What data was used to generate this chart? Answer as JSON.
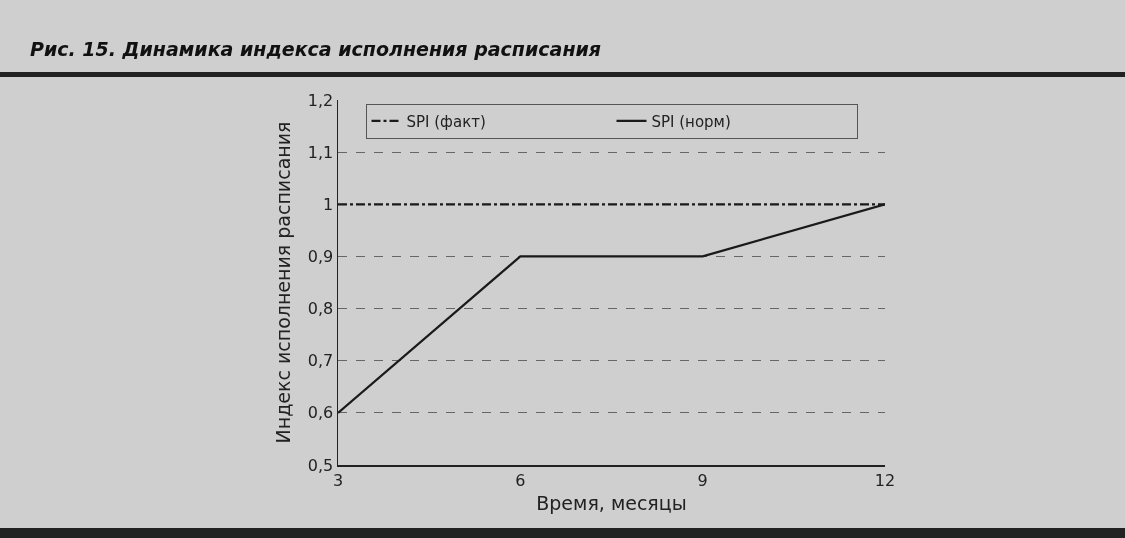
{
  "chart_data": {
    "type": "line",
    "title": "Рис. 15. Динамика индекса исполнения расписания",
    "xlabel": "Время, месяцы",
    "ylabel": "Индекс исполнения расписания",
    "x": [
      3,
      6,
      9,
      12
    ],
    "series": [
      {
        "name": "SPI (факт)",
        "color": "#1a1a1a",
        "values": [
          1,
          1,
          1,
          1
        ],
        "line_style": "dashdot"
      },
      {
        "name": "SPI (норм)",
        "color": "#1a1a1a",
        "values": [
          0.6,
          0.9,
          0.9,
          1.0
        ],
        "line_style": "solid"
      }
    ],
    "xlim": [
      3,
      12
    ],
    "xticks": [
      3,
      6,
      9,
      12
    ],
    "ylim": [
      0.5,
      1.2
    ],
    "yticks": [
      {
        "value": 0.5,
        "label": "0,5"
      },
      {
        "value": 0.6,
        "label": "0,6"
      },
      {
        "value": 0.7,
        "label": "0,7"
      },
      {
        "value": 0.8,
        "label": "0,8"
      },
      {
        "value": 0.9,
        "label": "0,9"
      },
      {
        "value": 1,
        "label": "1"
      },
      {
        "value": 1.1,
        "label": "1,1"
      },
      {
        "value": 1.2,
        "label": "1,2"
      }
    ],
    "grid": "y",
    "legend": "top",
    "marker": "none"
  }
}
